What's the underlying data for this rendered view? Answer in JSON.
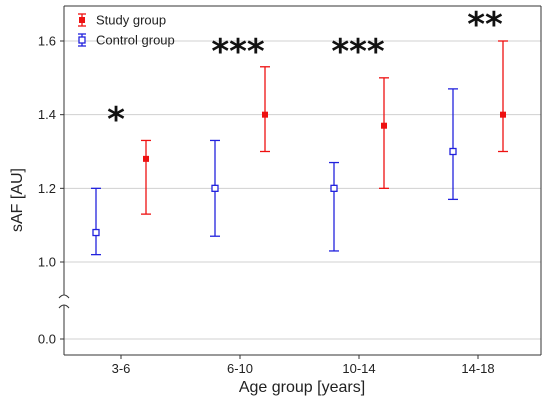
{
  "chart_data": {
    "type": "scatter",
    "xlabel": "Age group [years]",
    "ylabel": "sAF [AU]",
    "categories": [
      "3-6",
      "6-10",
      "10-14",
      "14-18"
    ],
    "y_axis": {
      "ticks": [
        0.0,
        1.0,
        1.2,
        1.4,
        1.6
      ],
      "tick_labels": [
        "0.0",
        "1.0",
        "1.2",
        "1.4",
        "1.6"
      ],
      "broken_between": [
        0.0,
        1.0
      ],
      "upper_range": [
        0.95,
        1.7
      ]
    },
    "grid": "horizontal",
    "legend_placement": "top-left",
    "series": [
      {
        "name": "Study group",
        "color": "#ee1111",
        "marker": "filled-square",
        "values": [
          1.28,
          1.4,
          1.37,
          1.4
        ],
        "lower": [
          1.13,
          1.3,
          1.2,
          1.3
        ],
        "upper": [
          1.33,
          1.53,
          1.5,
          1.6
        ]
      },
      {
        "name": "Control group",
        "color": "#2222dd",
        "marker": "open-square",
        "values": [
          1.08,
          1.2,
          1.2,
          1.3
        ],
        "lower": [
          1.02,
          1.07,
          1.03,
          1.17
        ],
        "upper": [
          1.2,
          1.33,
          1.27,
          1.47
        ]
      }
    ],
    "significance": [
      "*",
      "***",
      "***",
      "**"
    ]
  }
}
